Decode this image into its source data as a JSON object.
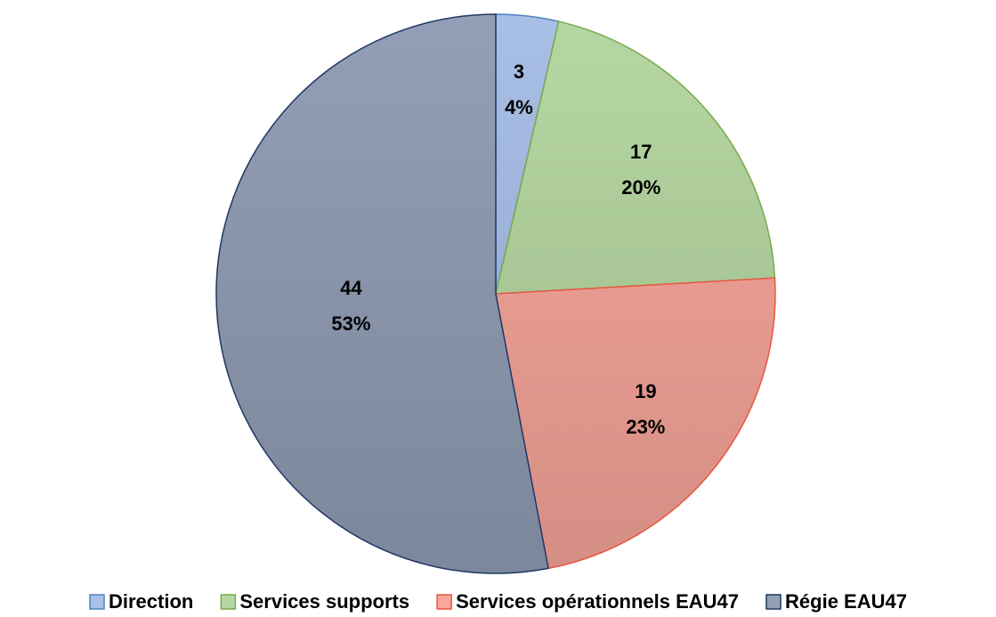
{
  "chart_data": {
    "type": "pie",
    "categories": [
      "Direction",
      "Services supports",
      "Services opérationnels EAU47",
      "Régie EAU47"
    ],
    "values": [
      3,
      17,
      19,
      44
    ],
    "percent_labels": [
      "4%",
      "20%",
      "23%",
      "53%"
    ],
    "colors": [
      "#a8bfe6",
      "#b6d7a2",
      "#f9a79b",
      "#939fb6"
    ],
    "edge_colors": [
      "#4f81bd",
      "#78a94c",
      "#e8573f",
      "#1f3864"
    ],
    "legend": "bottom"
  }
}
